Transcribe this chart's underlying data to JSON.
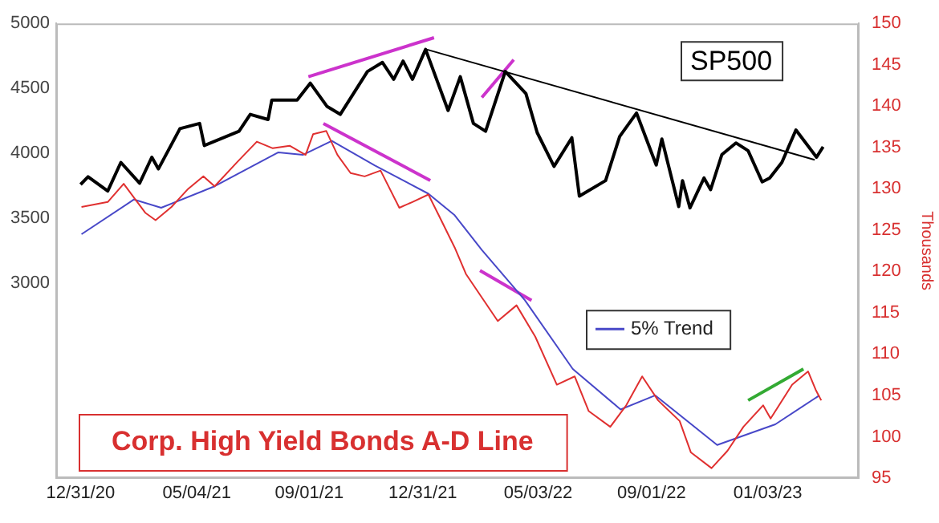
{
  "chart_data": {
    "type": "line",
    "title": "Corp. High Yield Bonds A-D Line",
    "y2label": "Thousands",
    "annotations": [
      "SP500"
    ],
    "legend": "center",
    "grid": false,
    "marker": "none",
    "xlim": [
      "2020-12-05",
      "2023-04-10"
    ],
    "xticks": [
      {
        "value": "2020-12-31",
        "label": "12/31/20"
      },
      {
        "value": "2021-05-04",
        "label": "05/04/21"
      },
      {
        "value": "2021-09-01",
        "label": "09/01/21"
      },
      {
        "value": "2021-12-31",
        "label": "12/31/21"
      },
      {
        "value": "2022-05-03",
        "label": "05/03/22"
      },
      {
        "value": "2022-09-01",
        "label": "09/01/22"
      },
      {
        "value": "2023-01-03",
        "label": "01/03/23"
      }
    ],
    "ylim": [
      1500,
      5000
    ],
    "yticks": [
      3000,
      3500,
      4000,
      4500,
      5000
    ],
    "y2lim": [
      95,
      150
    ],
    "y2ticks": [
      95,
      100,
      105,
      110,
      115,
      120,
      125,
      130,
      135,
      140,
      145,
      150
    ],
    "series": [
      {
        "color": "#000000",
        "axis": "y",
        "x": [
          "2020-12-31",
          "2021-01-08",
          "2021-01-29",
          "2021-02-12",
          "2021-03-04",
          "2021-03-17",
          "2021-03-24",
          "2021-04-16",
          "2021-05-07",
          "2021-05-12",
          "2021-06-18",
          "2021-06-30",
          "2021-07-19",
          "2021-07-23",
          "2021-08-19",
          "2021-09-02",
          "2021-09-20",
          "2021-10-04",
          "2021-11-02",
          "2021-11-18",
          "2021-11-30",
          "2021-12-10",
          "2021-12-20",
          "2022-01-03",
          "2022-01-27",
          "2022-02-09",
          "2022-02-23",
          "2022-03-08",
          "2022-03-29",
          "2022-04-20",
          "2022-05-02",
          "2022-05-20",
          "2022-06-08",
          "2022-06-16",
          "2022-07-14",
          "2022-07-29",
          "2022-08-16",
          "2022-09-06",
          "2022-09-12",
          "2022-09-30",
          "2022-10-04",
          "2022-10-12",
          "2022-10-27",
          "2022-11-03",
          "2022-11-15",
          "2022-11-30",
          "2022-12-13",
          "2022-12-28",
          "2023-01-05",
          "2023-01-18",
          "2023-02-02",
          "2023-02-24",
          "2023-03-03"
        ],
        "values": [
          3760,
          3820,
          3710,
          3930,
          3770,
          3970,
          3880,
          4190,
          4230,
          4060,
          4170,
          4300,
          4260,
          4410,
          4410,
          4540,
          4360,
          4300,
          4630,
          4700,
          4570,
          4710,
          4570,
          4800,
          4330,
          4590,
          4230,
          4170,
          4630,
          4460,
          4160,
          3900,
          4120,
          3670,
          3790,
          4130,
          4310,
          3910,
          4110,
          3590,
          3790,
          3580,
          3810,
          3720,
          3990,
          4080,
          4020,
          3780,
          3810,
          3930,
          4180,
          3970,
          4050
        ]
      },
      {
        "color": "#e03030",
        "axis": "y2",
        "x": [
          "2021-01-01",
          "2021-01-29",
          "2021-02-15",
          "2021-03-10",
          "2021-03-21",
          "2021-04-07",
          "2021-04-24",
          "2021-05-11",
          "2021-05-23",
          "2021-06-15",
          "2021-07-07",
          "2021-07-24",
          "2021-08-11",
          "2021-08-28",
          "2021-09-05",
          "2021-09-19",
          "2021-10-01",
          "2021-10-15",
          "2021-10-30",
          "2021-11-16",
          "2021-12-06",
          "2021-12-20",
          "2022-01-06",
          "2022-01-17",
          "2022-02-03",
          "2022-02-15",
          "2022-03-21",
          "2022-04-10",
          "2022-04-30",
          "2022-05-23",
          "2022-06-11",
          "2022-06-26",
          "2022-07-19",
          "2022-08-05",
          "2022-08-22",
          "2022-09-08",
          "2022-10-01",
          "2022-10-13",
          "2022-11-04",
          "2022-11-21",
          "2022-12-08",
          "2022-12-29",
          "2023-01-06",
          "2023-01-29",
          "2023-02-15",
          "2023-02-23",
          "2023-03-01"
        ],
        "values": [
          127.8,
          128.4,
          130.6,
          127.1,
          126.2,
          127.8,
          129.9,
          131.5,
          130.3,
          133.1,
          135.7,
          134.9,
          135.2,
          134.1,
          136.6,
          137.0,
          134.1,
          131.9,
          131.5,
          132.2,
          127.7,
          128.4,
          129.3,
          126.8,
          122.9,
          119.7,
          114.0,
          115.9,
          112.1,
          106.3,
          107.3,
          103.1,
          101.2,
          103.8,
          107.3,
          104.4,
          101.9,
          98.1,
          96.2,
          98.3,
          101.2,
          103.8,
          102.2,
          106.3,
          107.9,
          105.7,
          104.4
        ]
      },
      {
        "name": "5% Trend",
        "color": "#4848c8",
        "axis": "y2",
        "x": [
          "2021-01-01",
          "2021-02-26",
          "2021-03-27",
          "2021-05-23",
          "2021-07-30",
          "2021-08-25",
          "2021-09-25",
          "2021-11-10",
          "2022-01-06",
          "2022-02-03",
          "2022-03-04",
          "2022-04-19",
          "2022-06-09",
          "2022-07-30",
          "2022-09-05",
          "2022-11-10",
          "2023-01-11",
          "2023-02-27"
        ],
        "values": [
          124.5,
          128.7,
          127.7,
          130.3,
          134.4,
          134.1,
          135.8,
          132.8,
          129.4,
          126.8,
          122.6,
          116.5,
          108.2,
          103.3,
          105.0,
          99.0,
          101.5,
          105.0
        ]
      },
      {
        "color": "#000000",
        "axis": "y",
        "x": [
          "2022-01-04",
          "2023-02-22"
        ],
        "values": [
          4800,
          3950
        ]
      },
      {
        "color": "#cc33cc",
        "axis": "y",
        "x": [
          "2021-08-31",
          "2022-01-12"
        ],
        "values": [
          4590,
          4890
        ]
      },
      {
        "color": "#cc33cc",
        "axis": "y",
        "x": [
          "2022-03-04",
          "2022-04-07"
        ],
        "values": [
          4430,
          4720
        ]
      },
      {
        "color": "#cc33cc",
        "axis": "y2",
        "x": [
          "2021-09-16",
          "2022-01-08"
        ],
        "values": [
          137.9,
          131.0
        ]
      },
      {
        "color": "#cc33cc",
        "axis": "y2",
        "x": [
          "2022-03-02",
          "2022-04-26"
        ],
        "values": [
          120.1,
          116.5
        ]
      },
      {
        "color": "#33aa33",
        "axis": "y2",
        "x": [
          "2022-12-13",
          "2023-02-10"
        ],
        "values": [
          104.4,
          108.2
        ]
      }
    ]
  }
}
